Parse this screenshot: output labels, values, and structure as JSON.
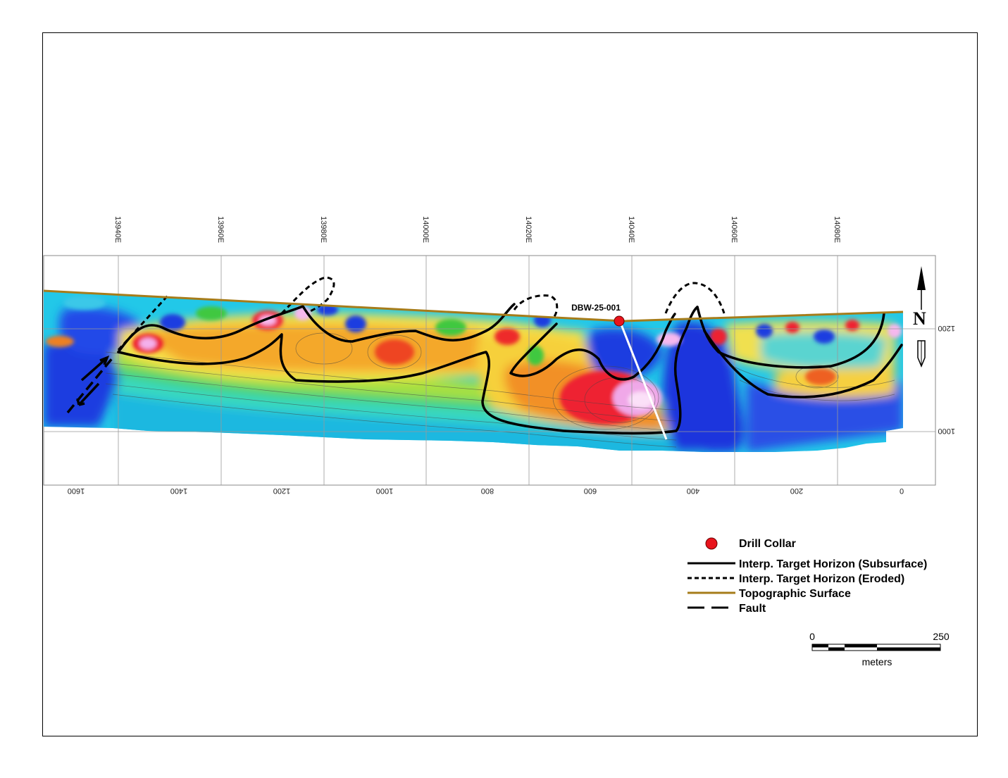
{
  "section": {
    "easting_labels": [
      "13940E",
      "13960E",
      "13980E",
      "14000E",
      "14020E",
      "14040E",
      "14060E",
      "14080E"
    ],
    "distance_labels": [
      "1600",
      "1400",
      "1200",
      "1000",
      "800",
      "600",
      "400",
      "200",
      "0"
    ],
    "elevation_labels": [
      "1200",
      "1000"
    ]
  },
  "drillhole": {
    "label": "DBW-25-001"
  },
  "north_arrow": {
    "label": "N"
  },
  "legend": {
    "drill_collar": "Drill Collar",
    "subsurface": "Interp. Target Horizon (Subsurface)",
    "eroded": "Interp. Target Horizon (Eroded)",
    "topo": "Topographic Surface",
    "fault": "Fault"
  },
  "scale_bar": {
    "start": "0",
    "end": "250",
    "unit": "meters"
  },
  "colors": {
    "topographic_surface": "#a67c1a",
    "drill_collar": "#e8141c",
    "drill_trace": "#ffffff",
    "target_horizon": "#000000"
  }
}
